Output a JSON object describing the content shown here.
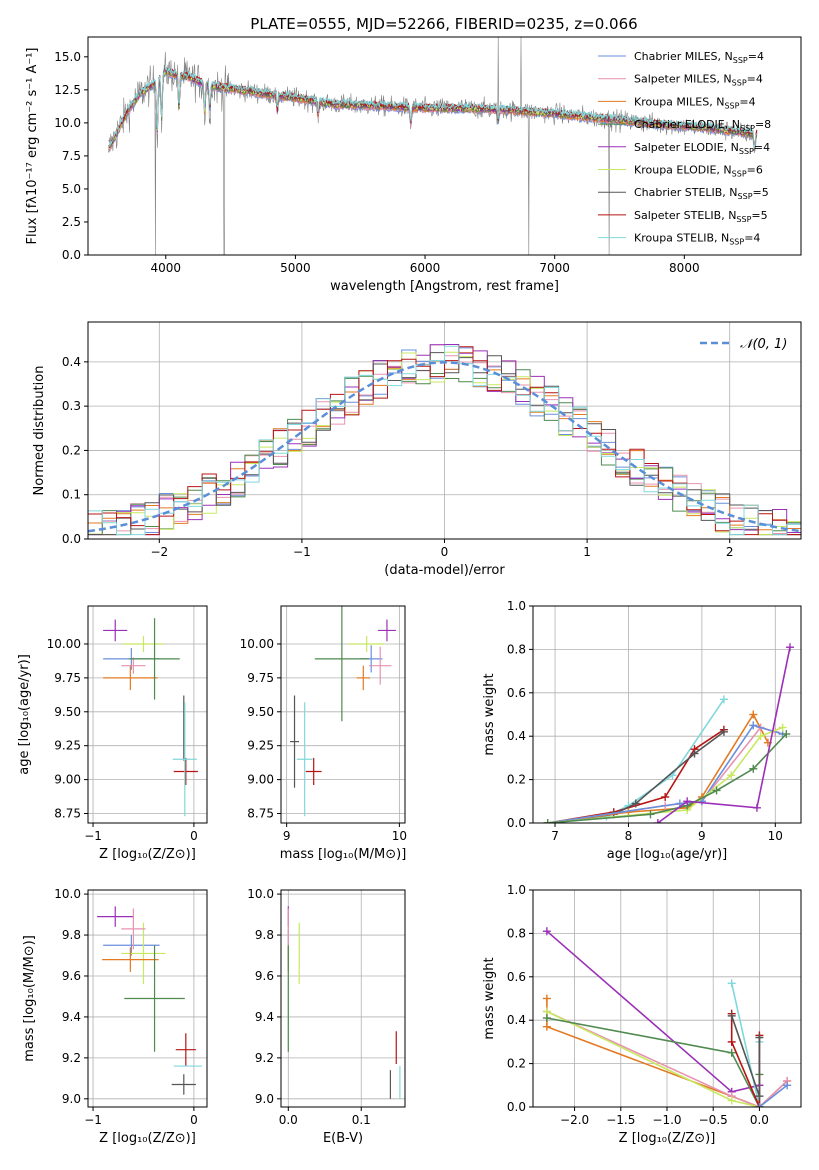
{
  "figure": {
    "title": "PLATE=0555, MJD=52266, FIBERID=0235, z=0.066"
  },
  "chart_data": [
    {
      "id": "spectrum",
      "type": "line",
      "xlabel": "wavelength [Angstrom, rest frame]",
      "ylabel": "Flux [fλ10⁻¹⁷ erg cm⁻² s⁻¹ A⁻¹]",
      "xlim": [
        3400,
        8900
      ],
      "ylim": [
        0,
        16.5
      ],
      "xticks": [
        4000,
        5000,
        6000,
        7000,
        8000
      ],
      "yticks": [
        0.0,
        2.5,
        5.0,
        7.5,
        10.0,
        12.5,
        15.0
      ],
      "legend_position": "top-right",
      "continuum": {
        "x": [
          3550,
          3600,
          3700,
          3800,
          3900,
          4000,
          4100,
          4200,
          4300,
          4400,
          4500,
          4700,
          5000,
          5300,
          5600,
          6000,
          6300,
          6600,
          7000,
          7400,
          7800,
          8200,
          8500,
          8800
        ],
        "y": [
          7.8,
          8.8,
          10.8,
          12.2,
          12.9,
          13.9,
          13.6,
          13.4,
          12.9,
          12.7,
          12.6,
          12.3,
          11.9,
          11.4,
          11.3,
          11.1,
          11.1,
          11.0,
          10.7,
          10.3,
          9.9,
          9.6,
          9.2,
          9.0
        ]
      },
      "series": [
        {
          "name": "Chabrier MILES, N_SSP=4",
          "color": "#6a8fdc"
        },
        {
          "name": "Salpeter MILES, N_SSP=4",
          "color": "#e793b0"
        },
        {
          "name": "Kroupa MILES, N_SSP=4",
          "color": "#e37a22"
        },
        {
          "name": "Chabrier ELODIE, N_SSP=8",
          "color": "#4f8a4f"
        },
        {
          "name": "Salpeter ELODIE, N_SSP=4",
          "color": "#9b30b8"
        },
        {
          "name": "Kroupa ELODIE, N_SSP=6",
          "color": "#c8e860"
        },
        {
          "name": "Chabrier STELIB, N_SSP=5",
          "color": "#555555"
        },
        {
          "name": "Salpeter STELIB, N_SSP=5",
          "color": "#b81414"
        },
        {
          "name": "Kroupa STELIB, N_SSP=4",
          "color": "#80d8dc"
        }
      ],
      "legend_labels": [
        {
          "base": "Chabrier MILES, N",
          "sub": "SSP",
          "tail": "=4"
        },
        {
          "base": "Salpeter MILES, N",
          "sub": "SSP",
          "tail": "=4"
        },
        {
          "base": "Kroupa MILES, N",
          "sub": "SSP",
          "tail": "=4"
        },
        {
          "base": "Chabrier ELODIE, N",
          "sub": "SSP",
          "tail": "=8"
        },
        {
          "base": "Salpeter ELODIE, N",
          "sub": "SSP",
          "tail": "=4"
        },
        {
          "base": "Kroupa ELODIE, N",
          "sub": "SSP",
          "tail": "=6"
        },
        {
          "base": "Chabrier STELIB, N",
          "sub": "SSP",
          "tail": "=5"
        },
        {
          "base": "Salpeter STELIB, N",
          "sub": "SSP",
          "tail": "=5"
        },
        {
          "base": "Kroupa STELIB, N",
          "sub": "SSP",
          "tail": "=4"
        }
      ],
      "data_color": "#808080"
    },
    {
      "id": "residuals",
      "type": "line",
      "xlabel": "(data-model)/error",
      "ylabel": "Normed distribution",
      "xlim": [
        -2.5,
        2.5
      ],
      "ylim": [
        0,
        0.49
      ],
      "xticks": [
        -2,
        -1,
        0,
        1,
        2
      ],
      "yticks": [
        0.0,
        0.1,
        0.2,
        0.3,
        0.4
      ],
      "grid": true,
      "legend_position": "top-right",
      "gaussian_label": "𝒩(0, 1)",
      "gaussian_color": "#5a8fd8",
      "bin_width": 0.1
    },
    {
      "id": "age-vs-Z",
      "type": "scatter",
      "xlabel": "Z [log₁₀(Z/Z⊙)]",
      "ylabel": "age  [log₁₀(age/yr)]",
      "xlim": [
        -1.05,
        0.13
      ],
      "ylim": [
        8.68,
        10.28
      ],
      "xticks": [
        -1,
        0
      ],
      "yticks": [
        8.75,
        9.0,
        9.25,
        9.5,
        9.75,
        10.0
      ],
      "grid": true,
      "points": [
        {
          "x": -0.78,
          "y": 10.1,
          "ex": 0.12,
          "ey": 0.08,
          "series": 4
        },
        {
          "x": -0.62,
          "y": 9.89,
          "ex": 0.28,
          "ey": 0.08,
          "series": 0
        },
        {
          "x": -0.5,
          "y": 10.0,
          "ex": 0.2,
          "ey": 0.06,
          "series": 5
        },
        {
          "x": -0.6,
          "y": 9.84,
          "ex": 0.12,
          "ey": 0.06,
          "series": 1
        },
        {
          "x": -0.63,
          "y": 9.75,
          "ex": 0.27,
          "ey": 0.09,
          "series": 2
        },
        {
          "x": -0.39,
          "y": 9.89,
          "ex": 0.25,
          "ey": 0.3,
          "series": 3
        },
        {
          "x": -0.1,
          "y": 9.38,
          "ex": 0.0,
          "ey": 0.24,
          "series": 6
        },
        {
          "x": -0.08,
          "y": 9.06,
          "ex": 0.12,
          "ey": 0.1,
          "series": 7
        },
        {
          "x": -0.09,
          "y": 9.15,
          "ex": 0.12,
          "ey": 0.42,
          "series": 8
        }
      ]
    },
    {
      "id": "age-vs-mass",
      "type": "scatter",
      "xlabel": "mass [log₁₀(M/M⊙)]",
      "ylabel": "",
      "xlim": [
        8.95,
        10.05
      ],
      "ylim": [
        8.68,
        10.28
      ],
      "xticks": [
        9,
        10
      ],
      "yticks": [
        8.75,
        9.0,
        9.25,
        9.5,
        9.75,
        10.0
      ],
      "grid": true,
      "points": [
        {
          "x": 9.89,
          "y": 10.1,
          "ex": 0.08,
          "ey": 0.08,
          "series": 4
        },
        {
          "x": 9.75,
          "y": 9.89,
          "ex": 0.1,
          "ey": 0.1,
          "series": 0
        },
        {
          "x": 9.71,
          "y": 10.0,
          "ex": 0.16,
          "ey": 0.06,
          "series": 5
        },
        {
          "x": 9.83,
          "y": 9.84,
          "ex": 0.1,
          "ey": 0.14,
          "series": 1
        },
        {
          "x": 9.68,
          "y": 9.75,
          "ex": 0.06,
          "ey": 0.09,
          "series": 2
        },
        {
          "x": 9.49,
          "y": 9.89,
          "ex": 0.24,
          "ey": 0.46,
          "series": 3
        },
        {
          "x": 9.07,
          "y": 9.28,
          "ex": 0.04,
          "ey": 0.34,
          "series": 6
        },
        {
          "x": 9.24,
          "y": 9.06,
          "ex": 0.07,
          "ey": 0.1,
          "series": 7
        },
        {
          "x": 9.16,
          "y": 9.15,
          "ex": 0.07,
          "ey": 0.42,
          "series": 8
        }
      ]
    },
    {
      "id": "weight-vs-age",
      "type": "line",
      "xlabel": "age  [log₁₀(age/yr)]",
      "ylabel": "mass weight",
      "xlim": [
        6.7,
        10.35
      ],
      "ylim": [
        0,
        1.0
      ],
      "xticks": [
        7,
        8,
        9,
        10
      ],
      "yticks": [
        0.0,
        0.2,
        0.4,
        0.6,
        0.8,
        1.0
      ],
      "grid": true,
      "lines": [
        {
          "series": 8,
          "x": [
            6.9,
            7.7,
            8.0,
            8.6,
            9.3
          ],
          "y": [
            0.0,
            0.03,
            0.08,
            0.22,
            0.57
          ]
        },
        {
          "series": 7,
          "x": [
            6.9,
            7.8,
            8.5,
            8.9,
            9.3
          ],
          "y": [
            0.0,
            0.05,
            0.12,
            0.34,
            0.43
          ]
        },
        {
          "series": 6,
          "x": [
            6.9,
            7.8,
            8.1,
            8.9,
            9.3
          ],
          "y": [
            0.0,
            0.04,
            0.09,
            0.32,
            0.42
          ]
        },
        {
          "series": 2,
          "x": [
            6.9,
            8.0,
            8.8,
            9.0,
            9.7,
            9.9
          ],
          "y": [
            0.0,
            0.05,
            0.07,
            0.12,
            0.5,
            0.37
          ]
        },
        {
          "series": 1,
          "x": [
            6.9,
            8.5,
            9.0,
            9.8,
            10.0
          ],
          "y": [
            0.0,
            0.08,
            0.1,
            0.44,
            0.42
          ]
        },
        {
          "series": 0,
          "x": [
            6.9,
            8.7,
            9.0,
            9.7,
            10.1
          ],
          "y": [
            0.0,
            0.09,
            0.1,
            0.45,
            0.41
          ]
        },
        {
          "series": 5,
          "x": [
            6.9,
            8.8,
            9.4,
            9.8,
            10.1
          ],
          "y": [
            0.0,
            0.06,
            0.22,
            0.4,
            0.44
          ]
        },
        {
          "series": 3,
          "x": [
            6.9,
            8.3,
            8.8,
            9.2,
            9.7,
            10.15
          ],
          "y": [
            0.0,
            0.04,
            0.08,
            0.15,
            0.25,
            0.41
          ]
        },
        {
          "series": 4,
          "x": [
            8.4,
            8.8,
            9.75,
            10.2
          ],
          "y": [
            0.0,
            0.1,
            0.07,
            0.81
          ]
        }
      ]
    },
    {
      "id": "mass-vs-Z",
      "type": "scatter",
      "xlabel": "Z [log₁₀(Z/Z⊙)]",
      "ylabel": "mass [log₁₀(M/M⊙)]",
      "xlim": [
        -1.05,
        0.13
      ],
      "ylim": [
        8.96,
        10.02
      ],
      "xticks": [
        -1,
        0
      ],
      "yticks": [
        9.0,
        9.2,
        9.4,
        9.6,
        9.8,
        10.0
      ],
      "grid": true,
      "points": [
        {
          "x": -0.78,
          "y": 9.89,
          "ex": 0.18,
          "ey": 0.05,
          "series": 4
        },
        {
          "x": -0.62,
          "y": 9.75,
          "ex": 0.28,
          "ey": 0.05,
          "series": 0
        },
        {
          "x": -0.5,
          "y": 9.71,
          "ex": 0.22,
          "ey": 0.15,
          "series": 5
        },
        {
          "x": -0.6,
          "y": 9.83,
          "ex": 0.12,
          "ey": 0.1,
          "series": 1
        },
        {
          "x": -0.63,
          "y": 9.68,
          "ex": 0.28,
          "ey": 0.06,
          "series": 2
        },
        {
          "x": -0.39,
          "y": 9.49,
          "ex": 0.3,
          "ey": 0.26,
          "series": 3
        },
        {
          "x": -0.1,
          "y": 9.07,
          "ex": 0.12,
          "ey": 0.05,
          "series": 6
        },
        {
          "x": -0.08,
          "y": 9.24,
          "ex": 0.1,
          "ey": 0.08,
          "series": 7
        },
        {
          "x": -0.06,
          "y": 9.16,
          "ex": 0.14,
          "ey": 0.0,
          "series": 8
        }
      ]
    },
    {
      "id": "mass-vs-ebv",
      "type": "scatter",
      "xlabel": "E(B-V)",
      "ylabel": "",
      "xlim": [
        -0.01,
        0.16
      ],
      "ylim": [
        8.96,
        10.02
      ],
      "xticks": [
        0.0,
        0.1
      ],
      "yticks": [
        9.0,
        9.2,
        9.4,
        9.6,
        9.8,
        10.0
      ],
      "grid": true,
      "points": [
        {
          "x": 0.0,
          "y": 9.89,
          "ex": 0.0,
          "ey": 0.05,
          "series": 4
        },
        {
          "x": 0.0,
          "y": 9.75,
          "ex": 0.0,
          "ey": 0.08,
          "series": 0
        },
        {
          "x": 0.015,
          "y": 9.71,
          "ex": 0.0,
          "ey": 0.15,
          "series": 5
        },
        {
          "x": 0.0,
          "y": 9.83,
          "ex": 0.0,
          "ey": 0.1,
          "series": 1
        },
        {
          "x": 0.0,
          "y": 9.68,
          "ex": 0.0,
          "ey": 0.06,
          "series": 2
        },
        {
          "x": 0.0,
          "y": 9.49,
          "ex": 0.0,
          "ey": 0.26,
          "series": 3
        },
        {
          "x": 0.14,
          "y": 9.07,
          "ex": 0.0,
          "ey": 0.07,
          "series": 6
        },
        {
          "x": 0.148,
          "y": 9.25,
          "ex": 0.0,
          "ey": 0.08,
          "series": 7
        },
        {
          "x": 0.153,
          "y": 9.08,
          "ex": 0.0,
          "ey": 0.08,
          "series": 8
        }
      ]
    },
    {
      "id": "weight-vs-Z",
      "type": "line",
      "xlabel": "Z [log₁₀(Z/Z⊙)]",
      "ylabel": "mass weight",
      "xlim": [
        -2.45,
        0.45
      ],
      "ylim": [
        0,
        1.0
      ],
      "xticks": [
        -2.0,
        -1.5,
        -1.0,
        -0.5,
        0.0
      ],
      "yticks": [
        0.0,
        0.2,
        0.4,
        0.6,
        0.8,
        1.0
      ],
      "grid": true,
      "lines": [
        {
          "series": 4,
          "x": [
            -2.3,
            -0.3,
            0.0,
            0.0
          ],
          "y": [
            0.81,
            0.07,
            0.1,
            0.0
          ]
        },
        {
          "series": 2,
          "x": [
            -2.3,
            -2.3,
            -0.3,
            0.0,
            0.3
          ],
          "y": [
            0.5,
            0.37,
            0.05,
            0.0,
            0.12
          ]
        },
        {
          "series": 1,
          "x": [
            -2.3,
            -0.3,
            0.0,
            0.3
          ],
          "y": [
            0.44,
            0.05,
            0.0,
            0.12
          ]
        },
        {
          "series": 5,
          "x": [
            -2.3,
            -0.3,
            0.0
          ],
          "y": [
            0.44,
            0.03,
            0.0
          ]
        },
        {
          "series": 3,
          "x": [
            -2.3,
            -0.3,
            0.0,
            0.0
          ],
          "y": [
            0.41,
            0.25,
            0.0,
            0.15
          ]
        },
        {
          "series": 8,
          "x": [
            -0.3,
            0.0,
            0.0
          ],
          "y": [
            0.57,
            0.0,
            0.3
          ]
        },
        {
          "series": 7,
          "x": [
            -0.3,
            -0.3,
            0.0,
            0.0
          ],
          "y": [
            0.43,
            0.3,
            0.0,
            0.33
          ]
        },
        {
          "series": 6,
          "x": [
            -0.3,
            0.0,
            0.0
          ],
          "y": [
            0.42,
            0.05,
            0.32
          ]
        },
        {
          "series": 0,
          "x": [
            0.0,
            0.3
          ],
          "y": [
            0.0,
            0.1
          ]
        }
      ]
    }
  ]
}
